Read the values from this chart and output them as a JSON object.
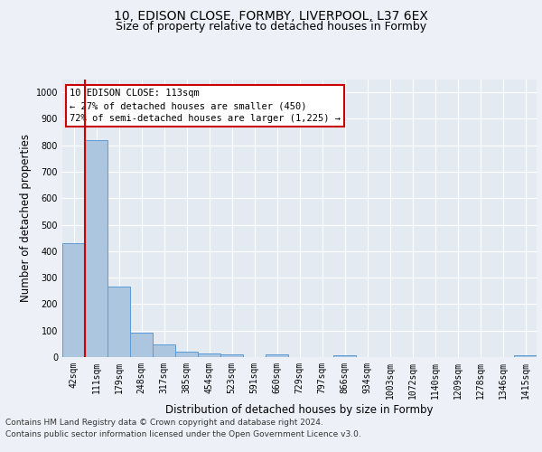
{
  "title_line1": "10, EDISON CLOSE, FORMBY, LIVERPOOL, L37 6EX",
  "title_line2": "Size of property relative to detached houses in Formby",
  "xlabel": "Distribution of detached houses by size in Formby",
  "ylabel": "Number of detached properties",
  "categories": [
    "42sqm",
    "111sqm",
    "179sqm",
    "248sqm",
    "317sqm",
    "385sqm",
    "454sqm",
    "523sqm",
    "591sqm",
    "660sqm",
    "729sqm",
    "797sqm",
    "866sqm",
    "934sqm",
    "1003sqm",
    "1072sqm",
    "1140sqm",
    "1209sqm",
    "1278sqm",
    "1346sqm",
    "1415sqm"
  ],
  "values": [
    430,
    820,
    268,
    93,
    48,
    20,
    15,
    10,
    0,
    10,
    0,
    0,
    7,
    0,
    0,
    0,
    0,
    0,
    0,
    0,
    7
  ],
  "bar_color": "#adc6e0",
  "bar_edge_color": "#5b9bd5",
  "vline_color": "#cc0000",
  "annotation_text": "10 EDISON CLOSE: 113sqm\n← 27% of detached houses are smaller (450)\n72% of semi-detached houses are larger (1,225) →",
  "annotation_box_color": "#ffffff",
  "annotation_box_edgecolor": "#cc0000",
  "ylim": [
    0,
    1050
  ],
  "yticks": [
    0,
    100,
    200,
    300,
    400,
    500,
    600,
    700,
    800,
    900,
    1000
  ],
  "footer_line1": "Contains HM Land Registry data © Crown copyright and database right 2024.",
  "footer_line2": "Contains public sector information licensed under the Open Government Licence v3.0.",
  "bg_color": "#edf1f7",
  "plot_bg_color": "#e4eaf2",
  "grid_color": "#ffffff",
  "title_fontsize": 10,
  "subtitle_fontsize": 9,
  "axis_label_fontsize": 8.5,
  "tick_fontsize": 7,
  "annot_fontsize": 7.5,
  "footer_fontsize": 6.5
}
